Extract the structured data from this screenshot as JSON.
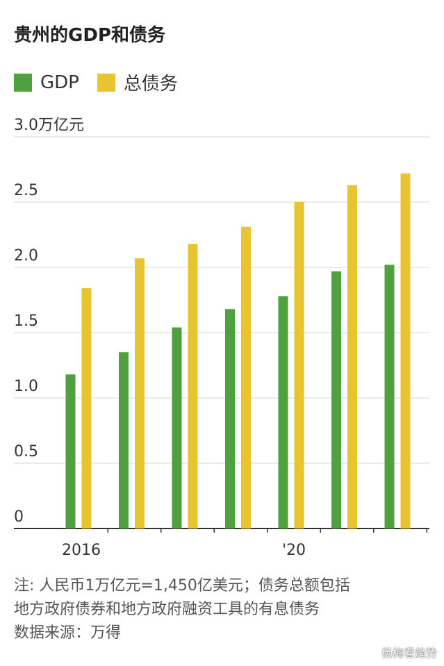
{
  "title": "贵州的GDP和债务",
  "legend": [
    {
      "label": "GDP",
      "color": "#50a040"
    },
    {
      "label": "总债务",
      "color": "#e8c530"
    }
  ],
  "notes": [
    "注: 人民币1万亿元=1,450亿美元；债务总额包括",
    "地方政府债券和地方政府融资工具的有息债务",
    "数据来源：万得"
  ],
  "watermark": "杨梅看趋势",
  "chart_data": {
    "type": "bar",
    "categories": [
      "2016",
      "2017",
      "2018",
      "2019",
      "2020",
      "2021",
      "2022"
    ],
    "x_tick_labels": [
      "2016",
      "",
      "",
      "",
      "'20",
      "",
      ""
    ],
    "series": [
      {
        "name": "GDP",
        "color": "#50a040",
        "values": [
          1.18,
          1.35,
          1.54,
          1.68,
          1.78,
          1.97,
          2.02
        ]
      },
      {
        "name": "总债务",
        "color": "#e8c530",
        "values": [
          1.84,
          2.07,
          2.18,
          2.31,
          2.5,
          2.63,
          2.72
        ]
      }
    ],
    "y_ticks": [
      {
        "value": 0,
        "label": "0"
      },
      {
        "value": 0.5,
        "label": "0.5"
      },
      {
        "value": 1.0,
        "label": "1.0"
      },
      {
        "value": 1.5,
        "label": "1.5"
      },
      {
        "value": 2.0,
        "label": "2.0"
      },
      {
        "value": 2.5,
        "label": "2.5"
      },
      {
        "value": 3.0,
        "label": "3.0万亿元"
      }
    ],
    "ylim": [
      0,
      3.0
    ],
    "grid": true
  }
}
